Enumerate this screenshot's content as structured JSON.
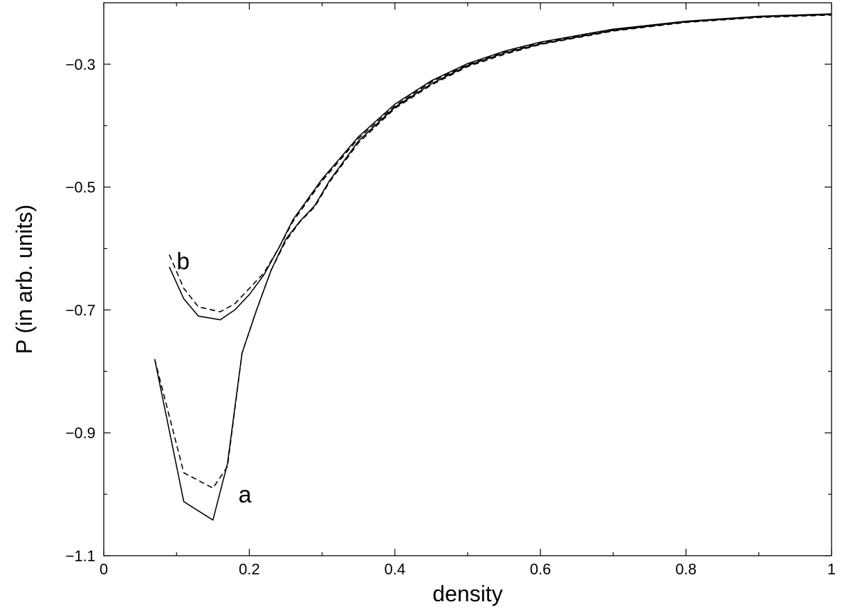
{
  "chart_data": {
    "type": "line",
    "title": "",
    "xlabel": "density",
    "ylabel": "P (in arb. units)",
    "xlim": [
      0,
      1
    ],
    "ylim": [
      -1.1,
      -0.2
    ],
    "x_ticks": [
      0,
      0.2,
      0.4,
      0.6,
      0.8,
      1
    ],
    "x_tick_labels": [
      "0",
      "0.2",
      "0.4",
      "0.6",
      "0.8",
      "1"
    ],
    "y_ticks": [
      -1.1,
      -0.9,
      -0.7,
      -0.5,
      -0.3
    ],
    "y_tick_labels": [
      "−1.1",
      "−0.9",
      "−0.7",
      "−0.5",
      "−0.3"
    ],
    "grid": false,
    "annotations": [
      {
        "text": "a",
        "x": 0.185,
        "y": -1.0
      },
      {
        "text": "b",
        "x": 0.1,
        "y": -0.62
      }
    ],
    "series": [
      {
        "style": "solid",
        "x": [
          0.07,
          0.11,
          0.15,
          0.17,
          0.19,
          0.21,
          0.23,
          0.25,
          0.27,
          0.29,
          0.31,
          0.35,
          0.4,
          0.45,
          0.5,
          0.55,
          0.6,
          0.7,
          0.8,
          0.9,
          1.0
        ],
        "y": [
          -0.78,
          -1.012,
          -1.042,
          -0.95,
          -0.77,
          -0.7,
          -0.635,
          -0.585,
          -0.555,
          -0.53,
          -0.49,
          -0.425,
          -0.37,
          -0.332,
          -0.302,
          -0.282,
          -0.267,
          -0.245,
          -0.231,
          -0.223,
          -0.219
        ]
      },
      {
        "style": "dashed",
        "x": [
          0.07,
          0.11,
          0.15,
          0.17,
          0.19,
          0.21,
          0.23,
          0.25,
          0.27,
          0.29,
          0.31,
          0.35,
          0.4,
          0.45,
          0.5,
          0.55,
          0.6,
          0.7,
          0.8,
          0.9,
          1.0
        ],
        "y": [
          -0.78,
          -0.965,
          -0.99,
          -0.955,
          -0.77,
          -0.7,
          -0.635,
          -0.588,
          -0.556,
          -0.532,
          -0.492,
          -0.428,
          -0.372,
          -0.334,
          -0.304,
          -0.284,
          -0.268,
          -0.246,
          -0.232,
          -0.224,
          -0.22
        ]
      },
      {
        "style": "solid",
        "x": [
          0.09,
          0.11,
          0.13,
          0.16,
          0.18,
          0.2,
          0.22,
          0.24,
          0.26,
          0.3,
          0.35,
          0.4,
          0.45,
          0.5,
          0.55,
          0.6,
          0.7,
          0.8,
          0.9,
          1.0
        ],
        "y": [
          -0.63,
          -0.682,
          -0.71,
          -0.716,
          -0.7,
          -0.675,
          -0.643,
          -0.6,
          -0.553,
          -0.487,
          -0.418,
          -0.365,
          -0.327,
          -0.299,
          -0.279,
          -0.264,
          -0.243,
          -0.23,
          -0.222,
          -0.218
        ]
      },
      {
        "style": "dashed",
        "x": [
          0.09,
          0.11,
          0.13,
          0.16,
          0.18,
          0.2,
          0.22,
          0.24,
          0.26,
          0.3,
          0.35,
          0.4,
          0.45,
          0.5,
          0.55,
          0.6,
          0.7,
          0.8,
          0.9,
          1.0
        ],
        "y": [
          -0.61,
          -0.665,
          -0.695,
          -0.703,
          -0.69,
          -0.665,
          -0.64,
          -0.6,
          -0.556,
          -0.49,
          -0.421,
          -0.368,
          -0.329,
          -0.301,
          -0.281,
          -0.266,
          -0.244,
          -0.231,
          -0.223,
          -0.219
        ]
      }
    ]
  }
}
